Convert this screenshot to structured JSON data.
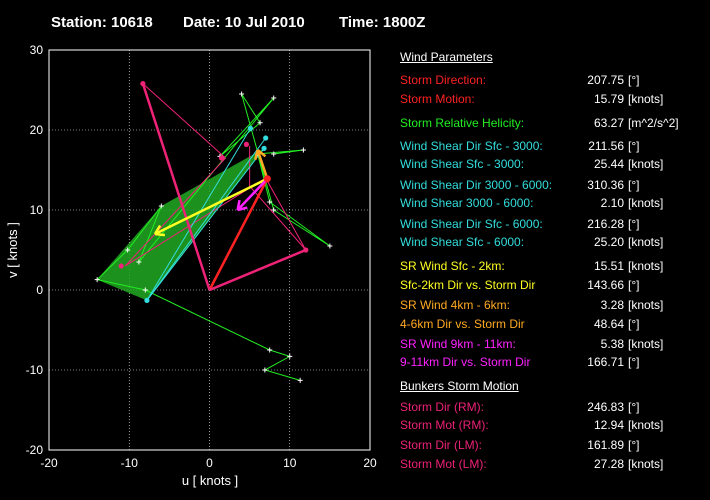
{
  "header": {
    "station": "Station: 10618",
    "date": "Date: 10 Jul 2010",
    "time": "Time: 1800Z"
  },
  "colors": {
    "red": "#ff2222",
    "green": "#22ee22",
    "cyan": "#33dddd",
    "yellow": "#ffff22",
    "orange": "#ffaa22",
    "magenta": "#ff22ff",
    "pink": "#ee2277",
    "white": "#ffffff"
  },
  "chart_data": {
    "type": "hodograph",
    "xlabel": "u  [ knots ]",
    "ylabel": "v  [ knots ]",
    "xlim": [
      -20,
      20
    ],
    "ylim": [
      -20,
      30
    ],
    "xticks": [
      -20,
      -10,
      0,
      10,
      20
    ],
    "yticks": [
      -20,
      -10,
      0,
      10,
      20,
      30
    ],
    "grid": true,
    "green_trace": [
      [
        11.3,
        -11.3
      ],
      [
        6.9,
        -10.0
      ],
      [
        10.0,
        -8.3
      ],
      [
        7.5,
        -7.5
      ],
      [
        -8.0,
        0.0
      ],
      [
        -14.0,
        1.3
      ],
      [
        -10.2,
        5.0
      ],
      [
        -6.0,
        10.5
      ],
      [
        -8.8,
        3.5
      ],
      [
        8.0,
        24.0
      ],
      [
        1.3,
        16.7
      ],
      [
        6.3,
        20.9
      ],
      [
        4.0,
        24.5
      ],
      [
        8.0,
        10.0
      ],
      [
        15.0,
        5.5
      ],
      [
        7.5,
        11.0
      ],
      [
        6.0,
        17.0
      ],
      [
        11.7,
        17.5
      ],
      [
        8.0,
        17.0
      ]
    ],
    "pink_trace": [
      [
        -8.3,
        25.8
      ],
      [
        2.0,
        16.5
      ],
      [
        -10.5,
        3.0
      ],
      [
        7.0,
        14.0
      ],
      [
        12.0,
        5.0
      ],
      [
        5.0,
        13.0
      ],
      [
        5.0,
        18.0
      ]
    ],
    "cyan_points": [
      [
        -7.8,
        -1.3
      ],
      [
        5.1,
        20.2
      ],
      [
        7.0,
        19.0
      ],
      [
        6.8,
        17.7
      ]
    ],
    "red_points": [
      [
        7.2,
        13.9
      ],
      [
        -8.3,
        25.8
      ],
      [
        -11.0,
        3.0
      ],
      [
        12.0,
        5.0
      ],
      [
        1.5,
        16.5
      ],
      [
        4.6,
        18.2
      ]
    ],
    "green_fill": [
      [
        -7.8,
        -1.3
      ],
      [
        -14.0,
        1.3
      ],
      [
        -6.0,
        10.5
      ],
      [
        6.8,
        17.7
      ]
    ],
    "vectors": [
      {
        "color": "red",
        "from": [
          0,
          0
        ],
        "to": [
          7.2,
          13.9
        ]
      },
      {
        "color": "pink",
        "from": [
          0,
          0
        ],
        "to": [
          -8.3,
          25.8
        ]
      },
      {
        "color": "pink",
        "from": [
          0,
          0
        ],
        "to": [
          12.0,
          5.0
        ]
      },
      {
        "color": "yellow",
        "from": [
          7.2,
          13.9
        ],
        "to": [
          -6.8,
          7.0
        ]
      },
      {
        "color": "orange",
        "from": [
          7.2,
          13.9
        ],
        "to": [
          6.0,
          17.5
        ]
      },
      {
        "color": "magenta",
        "from": [
          7.2,
          13.9
        ],
        "to": [
          3.5,
          10.0
        ]
      }
    ]
  },
  "params": {
    "wind_title": "Wind Parameters",
    "rows": [
      {
        "label": "Storm Direction:",
        "value": "207.75",
        "unit": "[°]",
        "color": "red"
      },
      {
        "label": "Storm Motion:",
        "value": "15.79",
        "unit": "[knots]",
        "color": "red"
      },
      {
        "label": "Storm Relative Helicity:",
        "value": "63.27",
        "unit": "[m^2/s^2]",
        "color": "green"
      },
      {
        "label": "Wind Shear Dir Sfc - 3000:",
        "value": "211.56",
        "unit": "[°]",
        "color": "cyan"
      },
      {
        "label": "Wind Shear Sfc - 3000:",
        "value": "25.44",
        "unit": "[knots]",
        "color": "cyan"
      },
      {
        "label": "Wind Shear Dir 3000 - 6000:",
        "value": "310.36",
        "unit": "[°]",
        "color": "cyan"
      },
      {
        "label": "Wind Shear 3000 - 6000:",
        "value": "2.10",
        "unit": "[knots]",
        "color": "cyan"
      },
      {
        "label": "Wind Shear Dir Sfc - 6000:",
        "value": "216.28",
        "unit": "[°]",
        "color": "cyan"
      },
      {
        "label": "Wind Shear Sfc - 6000:",
        "value": "25.20",
        "unit": "[knots]",
        "color": "cyan"
      },
      {
        "label": "SR Wind Sfc - 2km:",
        "value": "15.51",
        "unit": "[knots]",
        "color": "yellow"
      },
      {
        "label": "Sfc-2km Dir vs. Storm Dir",
        "value": "143.66",
        "unit": "[°]",
        "color": "yellow"
      },
      {
        "label": "SR Wind 4km - 6km:",
        "value": "3.28",
        "unit": "[knots]",
        "color": "orange"
      },
      {
        "label": "4-6km Dir vs. Storm Dir",
        "value": "48.64",
        "unit": "[°]",
        "color": "orange"
      },
      {
        "label": "SR Wind 9km - 11km:",
        "value": "5.38",
        "unit": "[knots]",
        "color": "magenta"
      },
      {
        "label": "9-11km Dir vs. Storm Dir",
        "value": "166.71",
        "unit": "[°]",
        "color": "magenta"
      }
    ],
    "bunkers_title": "Bunkers Storm Motion",
    "bunkers_rows": [
      {
        "label": "Storm Dir (RM):",
        "value": "246.83",
        "unit": "[°]",
        "color": "pink"
      },
      {
        "label": "Storm Mot (RM):",
        "value": "12.94",
        "unit": "[knots]",
        "color": "pink"
      },
      {
        "label": "Storm Dir (LM):",
        "value": "161.89",
        "unit": "[°]",
        "color": "pink"
      },
      {
        "label": "Storm Mot (LM):",
        "value": "27.28",
        "unit": "[knots]",
        "color": "pink"
      }
    ]
  }
}
